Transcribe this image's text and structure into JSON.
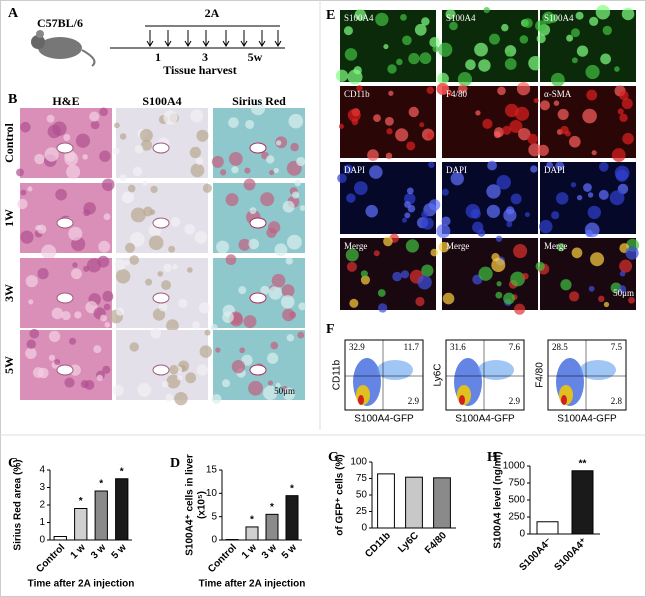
{
  "figure": {
    "panel_labels": [
      "A",
      "B",
      "C",
      "D",
      "E",
      "F",
      "G",
      "H"
    ],
    "a": {
      "strain": "C57BL/6",
      "treatment": "2A",
      "timepoints": [
        "1",
        "3",
        "5w"
      ],
      "caption": "Tissue harvest"
    },
    "b": {
      "columns": [
        "H&E",
        "S100A4",
        "Sirius Red"
      ],
      "rows": [
        "Control",
        "1W",
        "3W",
        "5W"
      ],
      "scale": "50μm"
    },
    "e": {
      "rows": [
        [
          "S100A4",
          "S100A4",
          "S100A4"
        ],
        [
          "CD11b",
          "F4/80",
          "α-SMA"
        ],
        [
          "DAPI",
          "DAPI",
          "DAPI"
        ],
        [
          "Merge",
          "Merge",
          "Merge"
        ]
      ],
      "scale": "50μm"
    },
    "f": {
      "x_label": "S100A4-GFP",
      "plots": [
        {
          "y_label": "CD11b",
          "quadrants": [
            32.9,
            11.7,
            2.9
          ]
        },
        {
          "y_label": "Ly6C",
          "quadrants": [
            31.6,
            7.6,
            2.9
          ]
        },
        {
          "y_label": "F4/80",
          "quadrants": [
            28.5,
            7.5,
            2.8
          ]
        }
      ]
    }
  },
  "chart_data": [
    {
      "type": "bar",
      "y_label": "Sirius Red area (%)",
      "x_label": "Time after 2A injection",
      "categories": [
        "Control",
        "1 w",
        "3 w",
        "5 w"
      ],
      "values": [
        0.2,
        1.8,
        2.8,
        3.5
      ],
      "colors": [
        "#ffffff",
        "#d0d0d0",
        "#8a8a8a",
        "#1a1a1a"
      ],
      "markers": [
        null,
        "*",
        "*",
        "*"
      ],
      "ylim": [
        0,
        4
      ],
      "yticks": [
        0,
        1,
        2,
        3,
        4
      ]
    },
    {
      "type": "bar",
      "y_label": "S100A4⁺ cells in liver",
      "y_unit": "(x10⁵)",
      "x_label": "Time after 2A injection",
      "categories": [
        "Control",
        "1 w",
        "3 w",
        "5 w"
      ],
      "values": [
        0.1,
        2.8,
        5.5,
        9.5
      ],
      "colors": [
        "#ffffff",
        "#d0d0d0",
        "#8a8a8a",
        "#1a1a1a"
      ],
      "markers": [
        null,
        "*",
        "*",
        "*"
      ],
      "ylim": [
        0,
        15
      ],
      "yticks": [
        0,
        5,
        10,
        15
      ]
    },
    {
      "type": "bar",
      "y_label": "of GFP⁺ cells (%)",
      "categories": [
        "CD11b",
        "Ly6C",
        "F4/80"
      ],
      "values": [
        82,
        77,
        76
      ],
      "colors": [
        "#ffffff",
        "#c8c8c8",
        "#8a8a8a"
      ],
      "ylim": [
        0,
        100
      ],
      "yticks": [
        0,
        25,
        50,
        75,
        100
      ]
    },
    {
      "type": "bar",
      "y_label": "S100A4 level (ng/ml)",
      "categories": [
        "S100A4⁻",
        "S100A4⁺"
      ],
      "values": [
        180,
        930
      ],
      "colors": [
        "#ffffff",
        "#1a1a1a"
      ],
      "markers": [
        null,
        "**"
      ],
      "ylim": [
        0,
        1000
      ],
      "yticks": [
        0,
        250,
        500,
        750,
        1000
      ]
    }
  ]
}
